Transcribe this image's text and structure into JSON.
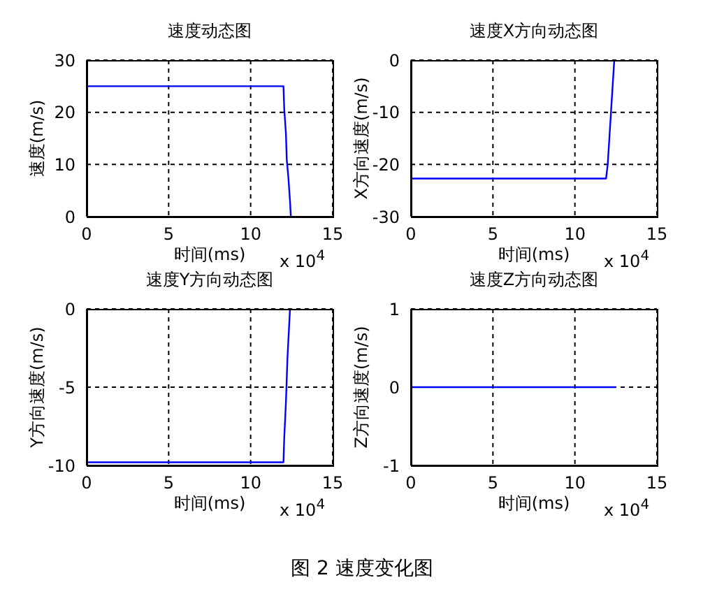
{
  "chart_data": [
    {
      "type": "line",
      "title": "速度动态图",
      "xlabel": "时间(ms)",
      "ylabel": "速度(m/s)",
      "xlim": [
        0,
        15
      ],
      "xticks": [
        0,
        5,
        10,
        15
      ],
      "ylim": [
        0,
        30
      ],
      "yticks": [
        0,
        10,
        20,
        30
      ],
      "grid": true,
      "annotations": [
        "x 10$^{4}$"
      ],
      "series": [
        {
          "color": "#0000ff",
          "x": [
            0,
            12,
            12.05,
            12.15,
            12.2,
            12.3,
            12.4,
            12.45
          ],
          "values": [
            25,
            25,
            20.5,
            16,
            11,
            7.5,
            3,
            0
          ]
        }
      ]
    },
    {
      "type": "line",
      "title": "速度X方向动态图",
      "xlabel": "时间(ms)",
      "ylabel": "X方向速度(m/s)",
      "xlim": [
        0,
        15
      ],
      "xticks": [
        0,
        5,
        10,
        15
      ],
      "ylim": [
        -30,
        0
      ],
      "yticks": [
        -30,
        -20,
        -10,
        0
      ],
      "grid": true,
      "annotations": [
        "x 10$^{4}$"
      ],
      "series": [
        {
          "color": "#0000ff",
          "x": [
            0,
            11.9,
            12.0,
            12.1,
            12.2,
            12.3,
            12.4
          ],
          "values": [
            -22.7,
            -22.7,
            -20,
            -15,
            -10,
            -5,
            0
          ]
        }
      ]
    },
    {
      "type": "line",
      "title": "速度Y方向动态图",
      "xlabel": "时间(ms)",
      "ylabel": "Y方向速度(m/s)",
      "xlim": [
        0,
        15
      ],
      "xticks": [
        0,
        5,
        10,
        15
      ],
      "ylim": [
        -10,
        0
      ],
      "yticks": [
        -10,
        -5,
        0
      ],
      "grid": true,
      "annotations": [
        "x 10$^{4}$"
      ],
      "series": [
        {
          "color": "#0000ff",
          "x": [
            0,
            12,
            12.05,
            12.15,
            12.25,
            12.35,
            12.4
          ],
          "values": [
            -9.8,
            -9.8,
            -8.2,
            -6,
            -3,
            -1,
            0
          ]
        }
      ]
    },
    {
      "type": "line",
      "title": "速度Z方向动态图",
      "xlabel": "时间(ms)",
      "ylabel": "Z方向速度(m/s)",
      "xlim": [
        0,
        15
      ],
      "xticks": [
        0,
        5,
        10,
        15
      ],
      "ylim": [
        -1,
        1
      ],
      "yticks": [
        -1,
        0,
        1
      ],
      "grid": true,
      "annotations": [
        "x 10$^{4}$",
        "图 2  速度变化图"
      ],
      "series": [
        {
          "color": "#0000ff",
          "x": [
            0,
            12.5
          ],
          "values": [
            0,
            0
          ]
        }
      ]
    }
  ]
}
